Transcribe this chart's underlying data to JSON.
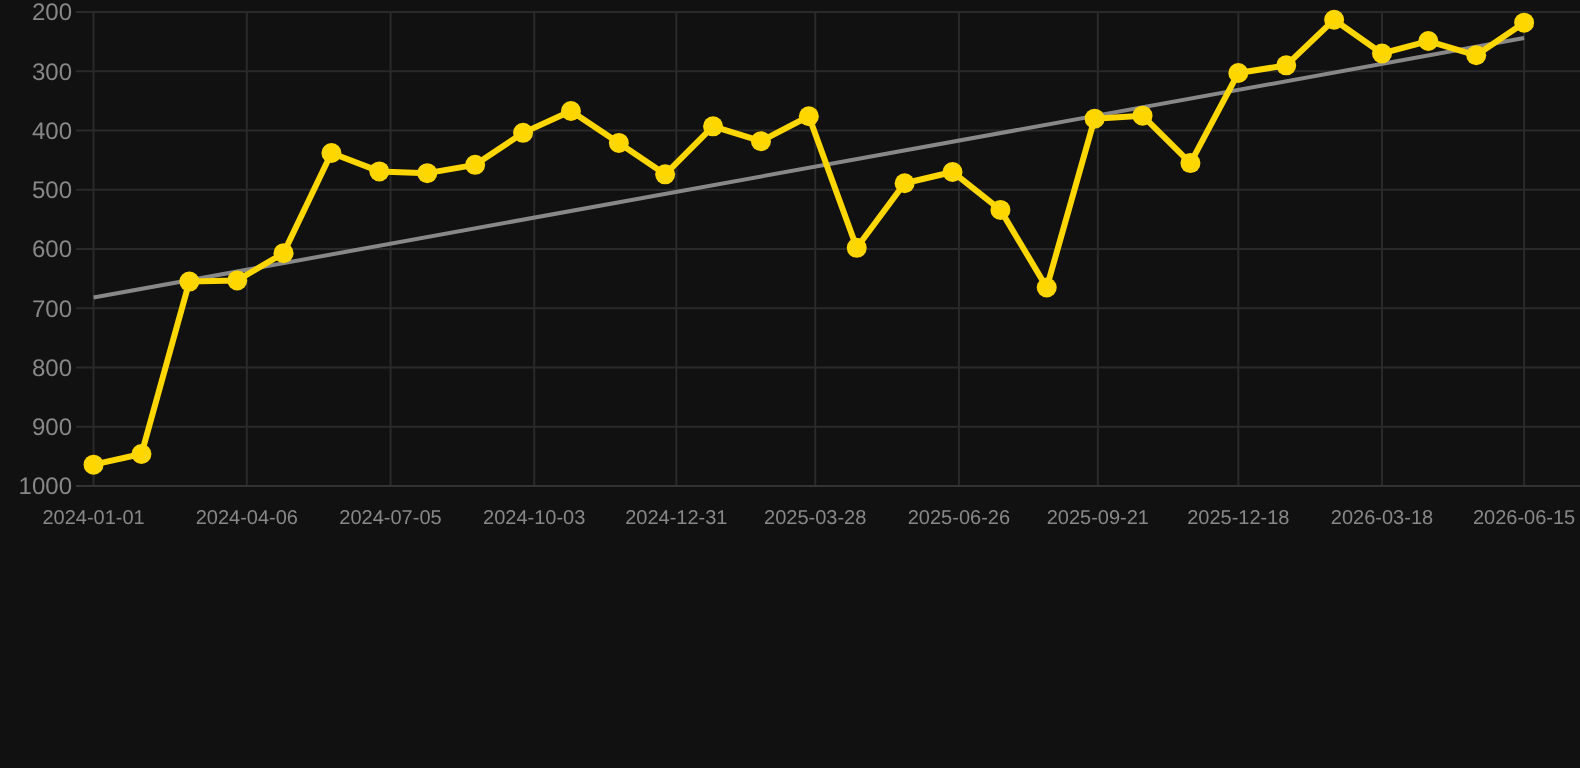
{
  "chart_data": {
    "type": "line",
    "x": [
      "2024-01-01",
      "2024-01-31",
      "2024-03-01",
      "2024-03-31",
      "2024-04-29",
      "2024-05-29",
      "2024-06-28",
      "2024-07-28",
      "2024-08-27",
      "2024-09-26",
      "2024-10-26",
      "2024-11-25",
      "2024-12-24",
      "2025-01-23",
      "2025-02-22",
      "2025-03-24",
      "2025-04-23",
      "2025-05-23",
      "2025-06-22",
      "2025-07-22",
      "2025-08-20",
      "2025-09-19",
      "2025-10-19",
      "2025-11-18",
      "2025-12-18",
      "2026-01-17",
      "2026-02-16",
      "2026-03-18",
      "2026-04-16",
      "2026-05-16",
      "2026-06-15"
    ],
    "series": [
      {
        "color": "#ffd700",
        "marker": "circle",
        "values": [
          964,
          946,
          655,
          653,
          607,
          438,
          469,
          472,
          458,
          404,
          367,
          421,
          474,
          393,
          418,
          376,
          598,
          489,
          470,
          534,
          665,
          380,
          375,
          455,
          303,
          290,
          213,
          270,
          249,
          273,
          218
        ]
      },
      {
        "color": "#888888",
        "marker": "none",
        "x": [
          "2024-01-01",
          "2026-06-15"
        ],
        "values": [
          682,
          244
        ]
      }
    ],
    "xlim": [
      "2023-12-21",
      "2026-07-20"
    ],
    "ylim": [
      1000,
      200
    ],
    "xticks": [
      "2024-01-01",
      "2024-04-06",
      "2024-07-05",
      "2024-10-03",
      "2024-12-31",
      "2025-03-28",
      "2025-06-26",
      "2025-09-21",
      "2025-12-18",
      "2026-03-18",
      "2026-06-15"
    ],
    "yticks": [
      200,
      300,
      400,
      500,
      600,
      700,
      800,
      900,
      1000
    ],
    "grid": true
  }
}
